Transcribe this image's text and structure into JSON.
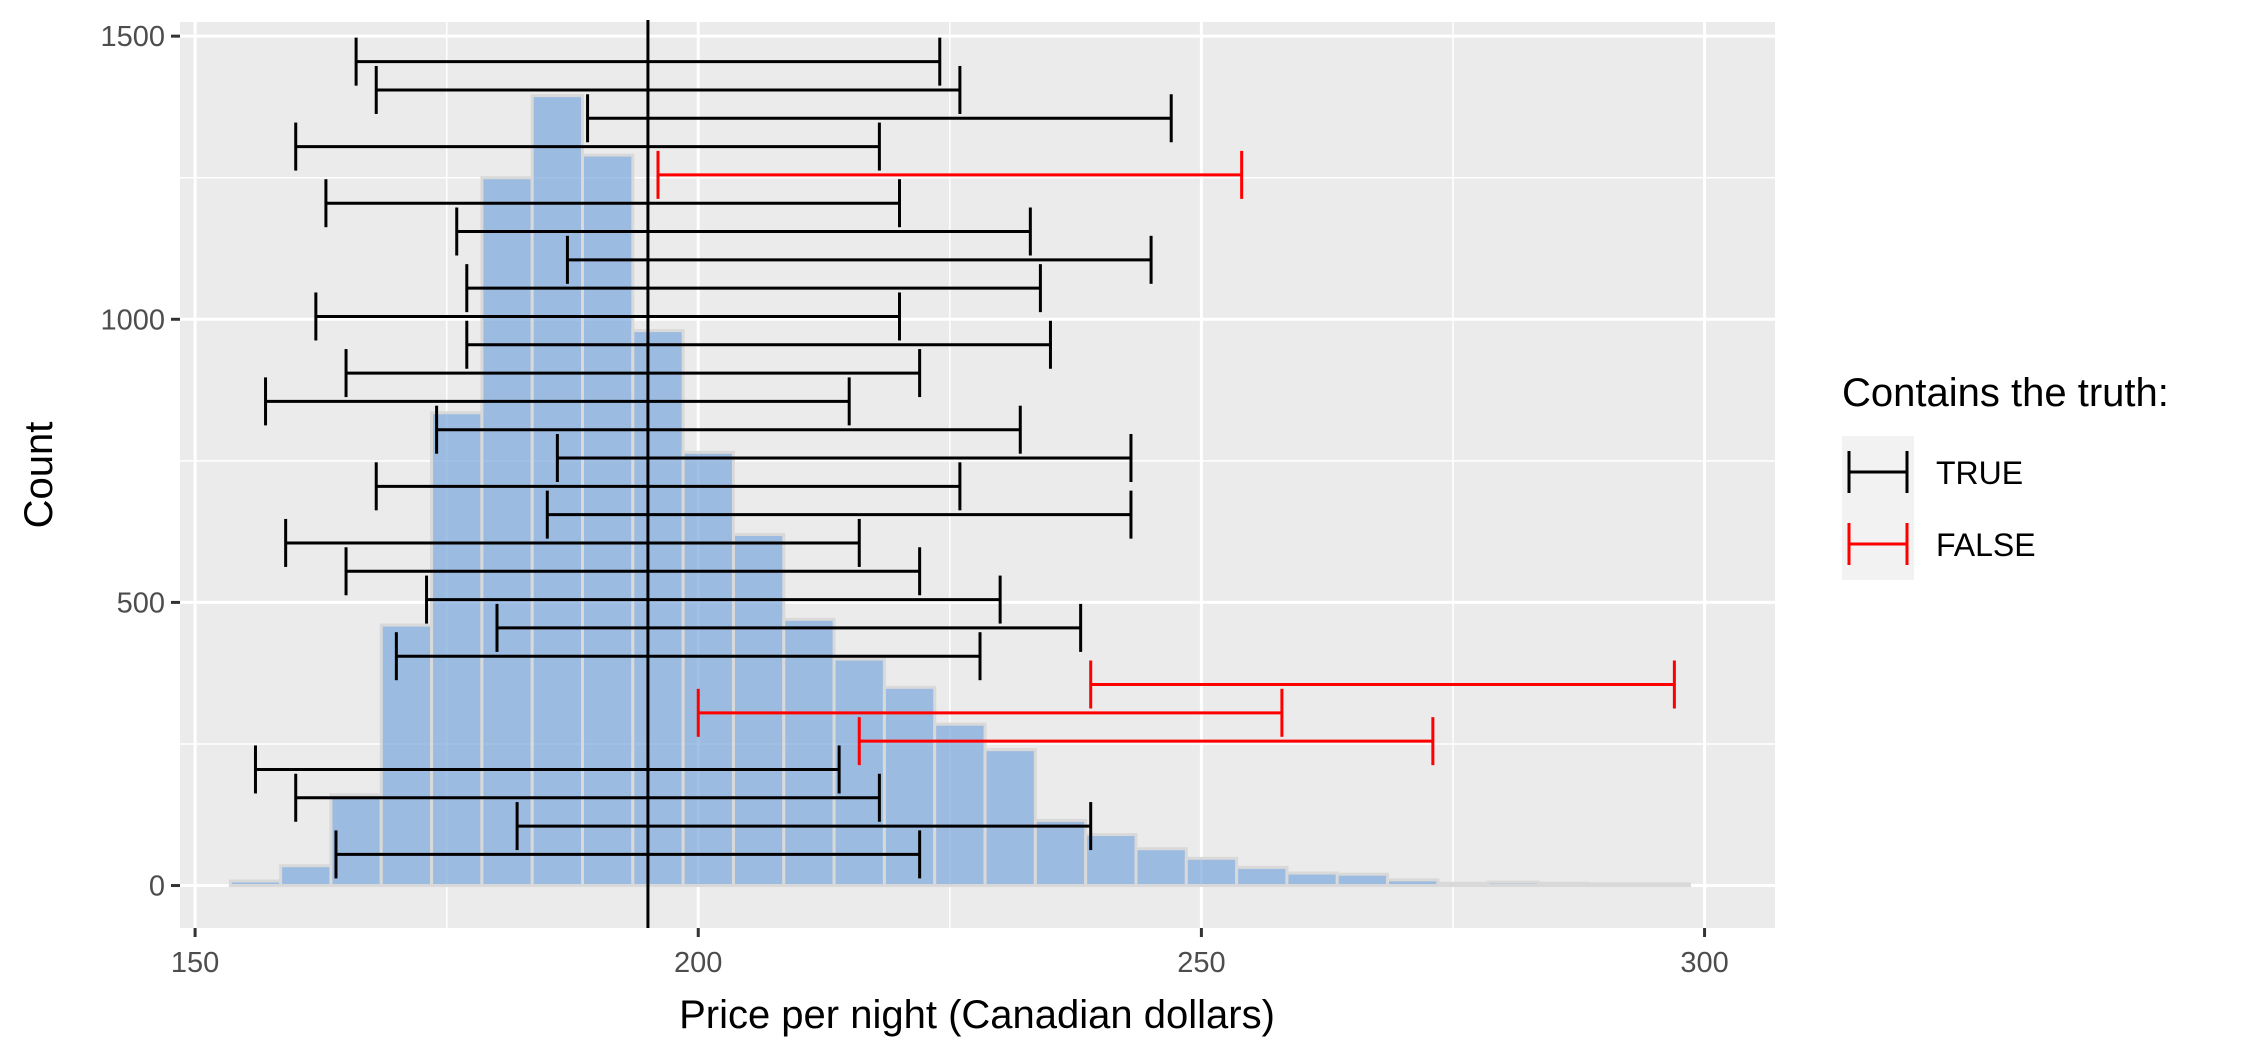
{
  "chart_data": {
    "type": "bar",
    "subtype": "histogram-with-confidence-intervals",
    "xlabel": "Price per night (Canadian dollars)",
    "ylabel": "Count",
    "xlim": [
      148.5,
      307
    ],
    "ylim": [
      -75,
      1525
    ],
    "x_ticks": [
      150,
      200,
      250,
      300
    ],
    "x_tick_labels": [
      "150",
      "200",
      "250",
      "300"
    ],
    "y_ticks": [
      0,
      500,
      1000,
      1500
    ],
    "y_tick_labels": [
      "0",
      "500",
      "1000",
      "1500"
    ],
    "grid": true,
    "bar_color": "#7ba7db",
    "bar_outline": "#d9d9d9",
    "bins": [
      {
        "x0": 153.5,
        "x1": 158.5,
        "count": 8
      },
      {
        "x0": 158.5,
        "x1": 163.5,
        "count": 35
      },
      {
        "x0": 163.5,
        "x1": 168.5,
        "count": 160
      },
      {
        "x0": 168.5,
        "x1": 173.5,
        "count": 460
      },
      {
        "x0": 173.5,
        "x1": 178.5,
        "count": 835
      },
      {
        "x0": 178.5,
        "x1": 183.5,
        "count": 1250
      },
      {
        "x0": 183.5,
        "x1": 188.5,
        "count": 1395
      },
      {
        "x0": 188.5,
        "x1": 193.5,
        "count": 1290
      },
      {
        "x0": 193.5,
        "x1": 198.5,
        "count": 980
      },
      {
        "x0": 198.5,
        "x1": 203.5,
        "count": 765
      },
      {
        "x0": 203.5,
        "x1": 208.5,
        "count": 620
      },
      {
        "x0": 208.5,
        "x1": 213.5,
        "count": 470
      },
      {
        "x0": 213.5,
        "x1": 218.5,
        "count": 400
      },
      {
        "x0": 218.5,
        "x1": 223.5,
        "count": 350
      },
      {
        "x0": 223.5,
        "x1": 228.5,
        "count": 285
      },
      {
        "x0": 228.5,
        "x1": 233.5,
        "count": 240
      },
      {
        "x0": 233.5,
        "x1": 238.5,
        "count": 115
      },
      {
        "x0": 238.5,
        "x1": 243.5,
        "count": 90
      },
      {
        "x0": 243.5,
        "x1": 248.5,
        "count": 65
      },
      {
        "x0": 248.5,
        "x1": 253.5,
        "count": 48
      },
      {
        "x0": 253.5,
        "x1": 258.5,
        "count": 32
      },
      {
        "x0": 258.5,
        "x1": 263.5,
        "count": 22
      },
      {
        "x0": 263.5,
        "x1": 268.5,
        "count": 20
      },
      {
        "x0": 268.5,
        "x1": 273.5,
        "count": 10
      },
      {
        "x0": 273.5,
        "x1": 278.5,
        "count": 4
      },
      {
        "x0": 278.5,
        "x1": 283.5,
        "count": 6
      },
      {
        "x0": 283.5,
        "x1": 288.5,
        "count": 4
      },
      {
        "x0": 288.5,
        "x1": 293.5,
        "count": 3
      },
      {
        "x0": 293.5,
        "x1": 298.5,
        "count": 3
      }
    ],
    "true_value": 195,
    "intervals": [
      {
        "lower": 166,
        "upper": 224,
        "y": 1455,
        "contains": true
      },
      {
        "lower": 168,
        "upper": 226,
        "y": 1405,
        "contains": true
      },
      {
        "lower": 189,
        "upper": 247,
        "y": 1355,
        "contains": true
      },
      {
        "lower": 160,
        "upper": 218,
        "y": 1305,
        "contains": true
      },
      {
        "lower": 196,
        "upper": 254,
        "y": 1255,
        "contains": false
      },
      {
        "lower": 163,
        "upper": 220,
        "y": 1205,
        "contains": true
      },
      {
        "lower": 176,
        "upper": 233,
        "y": 1155,
        "contains": true
      },
      {
        "lower": 187,
        "upper": 245,
        "y": 1105,
        "contains": true
      },
      {
        "lower": 177,
        "upper": 234,
        "y": 1055,
        "contains": true
      },
      {
        "lower": 162,
        "upper": 220,
        "y": 1005,
        "contains": true
      },
      {
        "lower": 177,
        "upper": 235,
        "y": 955,
        "contains": true
      },
      {
        "lower": 165,
        "upper": 222,
        "y": 905,
        "contains": true
      },
      {
        "lower": 157,
        "upper": 215,
        "y": 855,
        "contains": true
      },
      {
        "lower": 174,
        "upper": 232,
        "y": 805,
        "contains": true
      },
      {
        "lower": 186,
        "upper": 243,
        "y": 755,
        "contains": true
      },
      {
        "lower": 168,
        "upper": 226,
        "y": 705,
        "contains": true
      },
      {
        "lower": 185,
        "upper": 243,
        "y": 655,
        "contains": true
      },
      {
        "lower": 159,
        "upper": 216,
        "y": 605,
        "contains": true
      },
      {
        "lower": 165,
        "upper": 222,
        "y": 555,
        "contains": true
      },
      {
        "lower": 173,
        "upper": 230,
        "y": 505,
        "contains": true
      },
      {
        "lower": 180,
        "upper": 238,
        "y": 455,
        "contains": true
      },
      {
        "lower": 170,
        "upper": 228,
        "y": 405,
        "contains": true
      },
      {
        "lower": 239,
        "upper": 297,
        "y": 355,
        "contains": false
      },
      {
        "lower": 200,
        "upper": 258,
        "y": 305,
        "contains": false
      },
      {
        "lower": 216,
        "upper": 273,
        "y": 255,
        "contains": false
      },
      {
        "lower": 156,
        "upper": 214,
        "y": 205,
        "contains": true
      },
      {
        "lower": 160,
        "upper": 218,
        "y": 155,
        "contains": true
      },
      {
        "lower": 182,
        "upper": 239,
        "y": 105,
        "contains": true
      },
      {
        "lower": 164,
        "upper": 222,
        "y": 55,
        "contains": true
      }
    ],
    "legend": {
      "title": "Contains the truth:",
      "position": "right",
      "entries": [
        {
          "label": "TRUE",
          "color": "#000000"
        },
        {
          "label": "FALSE",
          "color": "#ff0000"
        }
      ]
    },
    "colors": {
      "panel_background": "#ebebeb",
      "grid": "#ffffff",
      "true_interval": "#000000",
      "false_interval": "#ff0000"
    }
  }
}
